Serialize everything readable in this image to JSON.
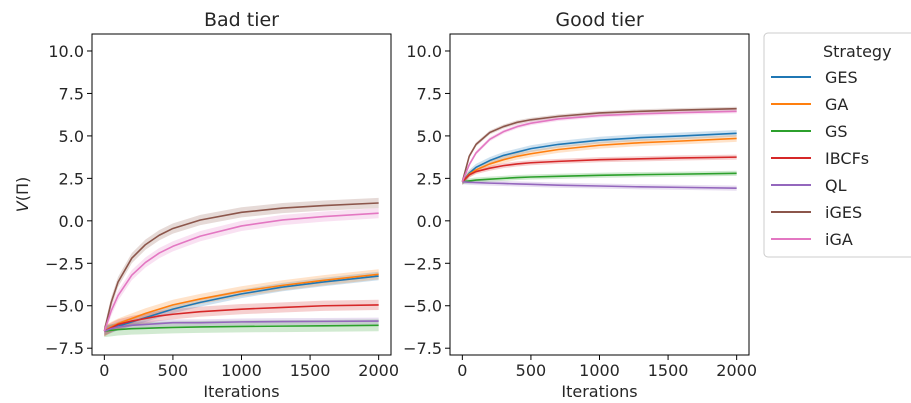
{
  "chart_data": [
    {
      "type": "line",
      "title": "Bad tier",
      "xlabel": "Iterations",
      "ylabel": "V(Π)",
      "xlim": [
        -90,
        2090
      ],
      "ylim": [
        -7.9,
        11.0
      ],
      "xticks": [
        "0",
        "500",
        "1000",
        "1500",
        "2000"
      ],
      "yticks": [
        "−7.5",
        "−5.0",
        "−2.5",
        "0.0",
        "2.5",
        "5.0",
        "7.5",
        "10.0"
      ],
      "x": [
        0,
        50,
        100,
        200,
        300,
        400,
        500,
        700,
        1000,
        1300,
        1600,
        2000
      ],
      "series": [
        {
          "name": "GES",
          "color": "#1f77b4",
          "band": 0.25,
          "values": [
            -6.5,
            -6.35,
            -6.2,
            -5.95,
            -5.7,
            -5.45,
            -5.2,
            -4.8,
            -4.3,
            -3.9,
            -3.6,
            -3.25
          ]
        },
        {
          "name": "GA",
          "color": "#ff7f0e",
          "band": 0.3,
          "values": [
            -6.5,
            -6.25,
            -6.05,
            -5.75,
            -5.45,
            -5.2,
            -4.95,
            -4.6,
            -4.15,
            -3.8,
            -3.5,
            -3.15
          ]
        },
        {
          "name": "GS",
          "color": "#2ca02c",
          "band": 0.35,
          "values": [
            -6.5,
            -6.45,
            -6.4,
            -6.35,
            -6.33,
            -6.3,
            -6.28,
            -6.25,
            -6.22,
            -6.2,
            -6.18,
            -6.15
          ]
        },
        {
          "name": "IBCFs",
          "color": "#d62728",
          "band": 0.3,
          "values": [
            -6.5,
            -6.3,
            -6.1,
            -5.9,
            -5.75,
            -5.6,
            -5.5,
            -5.35,
            -5.2,
            -5.1,
            -5.0,
            -4.95
          ]
        },
        {
          "name": "QL",
          "color": "#9467bd",
          "band": 0.2,
          "values": [
            -6.5,
            -6.35,
            -6.25,
            -6.15,
            -6.1,
            -6.05,
            -6.0,
            -6.0,
            -5.95,
            -5.93,
            -5.92,
            -5.9
          ]
        },
        {
          "name": "iGES",
          "color": "#8c564b",
          "band": 0.3,
          "values": [
            -6.5,
            -4.8,
            -3.6,
            -2.2,
            -1.4,
            -0.85,
            -0.45,
            0.05,
            0.5,
            0.75,
            0.9,
            1.05
          ]
        },
        {
          "name": "iGA",
          "color": "#e377c2",
          "band": 0.3,
          "values": [
            -6.5,
            -5.3,
            -4.4,
            -3.2,
            -2.45,
            -1.9,
            -1.5,
            -0.9,
            -0.3,
            0.05,
            0.25,
            0.45
          ]
        }
      ]
    },
    {
      "type": "line",
      "title": "Good tier",
      "xlabel": "Iterations",
      "ylabel": "",
      "xlim": [
        -90,
        2090
      ],
      "ylim": [
        -7.9,
        11.0
      ],
      "xticks": [
        "0",
        "500",
        "1000",
        "1500",
        "2000"
      ],
      "yticks": [
        "−7.5",
        "−5.0",
        "−2.5",
        "0.0",
        "2.5",
        "5.0",
        "7.5",
        "10.0"
      ],
      "x": [
        0,
        50,
        100,
        200,
        300,
        400,
        500,
        700,
        1000,
        1300,
        1600,
        2000
      ],
      "series": [
        {
          "name": "GES",
          "color": "#1f77b4",
          "band": 0.2,
          "values": [
            2.3,
            2.8,
            3.15,
            3.55,
            3.85,
            4.05,
            4.25,
            4.5,
            4.75,
            4.9,
            5.0,
            5.15
          ]
        },
        {
          "name": "GA",
          "color": "#ff7f0e",
          "band": 0.2,
          "values": [
            2.3,
            2.75,
            3.0,
            3.35,
            3.6,
            3.8,
            3.95,
            4.2,
            4.45,
            4.6,
            4.7,
            4.85
          ]
        },
        {
          "name": "GS",
          "color": "#2ca02c",
          "band": 0.15,
          "values": [
            2.3,
            2.35,
            2.4,
            2.45,
            2.5,
            2.55,
            2.58,
            2.62,
            2.68,
            2.72,
            2.75,
            2.8
          ]
        },
        {
          "name": "IBCFs",
          "color": "#d62728",
          "band": 0.15,
          "values": [
            2.3,
            2.7,
            2.9,
            3.1,
            3.25,
            3.35,
            3.42,
            3.5,
            3.6,
            3.65,
            3.7,
            3.75
          ]
        },
        {
          "name": "QL",
          "color": "#9467bd",
          "band": 0.15,
          "values": [
            2.3,
            2.27,
            2.25,
            2.22,
            2.2,
            2.17,
            2.15,
            2.1,
            2.05,
            2.0,
            1.97,
            1.92
          ]
        },
        {
          "name": "iGES",
          "color": "#8c564b",
          "band": 0.12,
          "values": [
            2.3,
            3.8,
            4.5,
            5.2,
            5.55,
            5.8,
            5.95,
            6.15,
            6.35,
            6.45,
            6.52,
            6.6
          ]
        },
        {
          "name": "iGA",
          "color": "#e377c2",
          "band": 0.12,
          "values": [
            2.3,
            3.3,
            4.0,
            4.8,
            5.25,
            5.55,
            5.75,
            6.0,
            6.2,
            6.3,
            6.37,
            6.45
          ]
        }
      ]
    }
  ],
  "legend": {
    "title": "Strategy",
    "placement": "outside right",
    "items": [
      "GES",
      "GA",
      "GS",
      "IBCFs",
      "QL",
      "iGES",
      "iGA"
    ],
    "colors": [
      "#1f77b4",
      "#ff7f0e",
      "#2ca02c",
      "#d62728",
      "#9467bd",
      "#8c564b",
      "#e377c2"
    ]
  }
}
